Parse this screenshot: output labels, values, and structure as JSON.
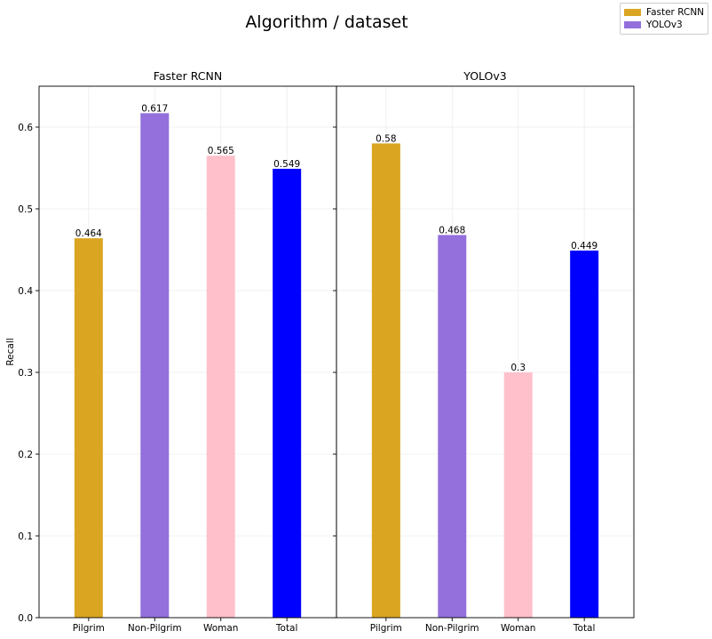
{
  "figure_title": "Algorithm / dataset",
  "legend": {
    "items": [
      {
        "label": "Faster RCNN",
        "color": "#daa520"
      },
      {
        "label": "YOLOv3",
        "color": "#9370db"
      }
    ]
  },
  "chart_data": [
    {
      "type": "bar",
      "title": "Faster RCNN",
      "categories": [
        "Pilgrim",
        "Non-Pilgrim",
        "Woman",
        "Total"
      ],
      "values": [
        0.464,
        0.617,
        0.565,
        0.549
      ],
      "value_labels": [
        "0.464",
        "0.617",
        "0.565",
        "0.549"
      ],
      "colors": [
        "#daa520",
        "#9370db",
        "#ffc0cb",
        "#0000ff"
      ],
      "ylabel": "Recall",
      "xlabel": "",
      "ylim": [
        0,
        0.65
      ],
      "yticks": [
        0.0,
        0.1,
        0.2,
        0.3,
        0.4,
        0.5,
        0.6
      ],
      "ytick_labels": [
        "0.0",
        "0.1",
        "0.2",
        "0.3",
        "0.4",
        "0.5",
        "0.6"
      ],
      "grid": true
    },
    {
      "type": "bar",
      "title": "YOLOv3",
      "categories": [
        "Pilgrim",
        "Non-Pilgrim",
        "Woman",
        "Total"
      ],
      "values": [
        0.58,
        0.468,
        0.3,
        0.449
      ],
      "value_labels": [
        "0.58",
        "0.468",
        "0.3",
        "0.449"
      ],
      "colors": [
        "#daa520",
        "#9370db",
        "#ffc0cb",
        "#0000ff"
      ],
      "ylabel": "",
      "xlabel": "",
      "ylim": [
        0,
        0.65
      ],
      "yticks": [
        0.0,
        0.1,
        0.2,
        0.3,
        0.4,
        0.5,
        0.6
      ],
      "ytick_labels": [
        "0.0",
        "0.1",
        "0.2",
        "0.3",
        "0.4",
        "0.5",
        "0.6"
      ],
      "grid": true
    }
  ]
}
